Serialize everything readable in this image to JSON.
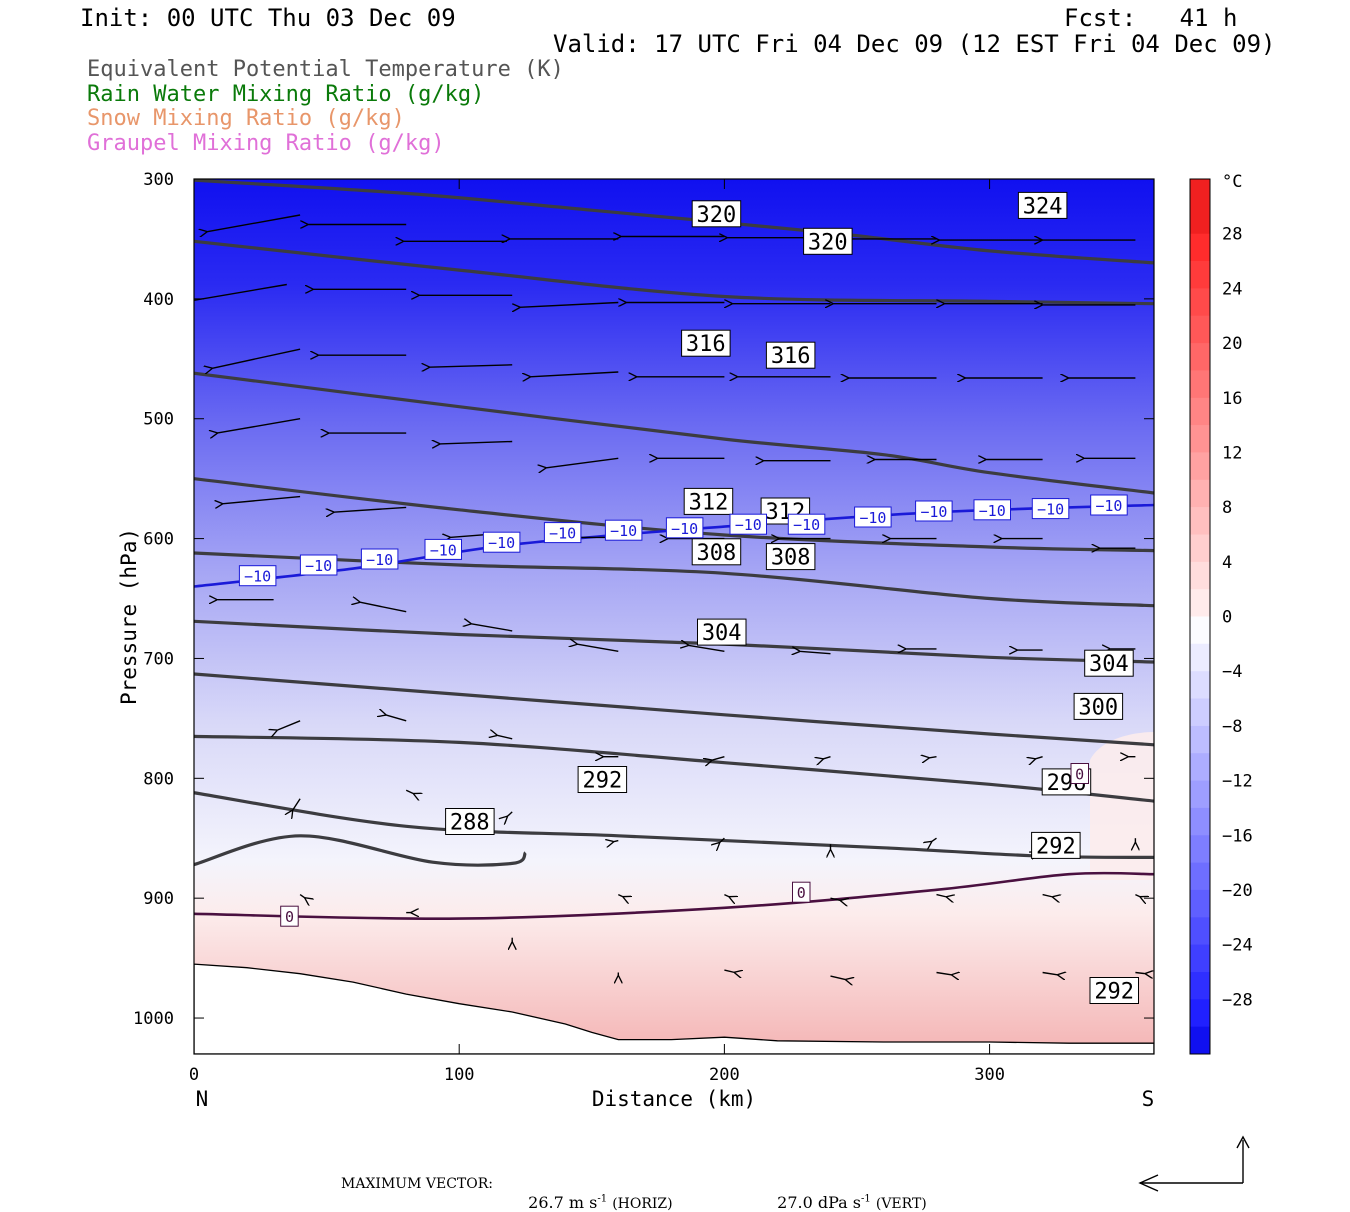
{
  "header": {
    "init": "Init: 00 UTC Thu 03 Dec 09",
    "fcst": "Fcst:   41 h",
    "valid": "Valid: 17 UTC Fri 04 Dec 09 (12 EST Fri 04 Dec 09)"
  },
  "legend": [
    {
      "text": "Equivalent Potential Temperature (K)",
      "color": "#555555"
    },
    {
      "text": "Rain Water Mixing Ratio (g/kg)",
      "color": "#0a7a0a"
    },
    {
      "text": "Snow Mixing Ratio (g/kg)",
      "color": "#e8966a"
    },
    {
      "text": "Graupel Mixing Ratio (g/kg)",
      "color": "#e070d8"
    }
  ],
  "chart_data": {
    "type": "contour cross-section",
    "xlabel": "Distance (km)",
    "ylabel": "Pressure (hPa)",
    "xlim": [
      0,
      362
    ],
    "ylim": [
      300,
      1030
    ],
    "x_ticks": [
      "0",
      "100",
      "200",
      "300"
    ],
    "y_ticks": [
      "300",
      "400",
      "500",
      "600",
      "700",
      "800",
      "900",
      "1000"
    ],
    "x_start_label": "N",
    "x_end_label": "S",
    "colorbar": {
      "unit": "°C",
      "ticks": [
        "28",
        "24",
        "20",
        "16",
        "12",
        "8",
        "4",
        "0",
        "-4",
        "-8",
        "-12",
        "-16",
        "-20",
        "-24",
        "-28"
      ]
    },
    "theta_e_contours": [
      {
        "value": 324,
        "points": [
          [
            0,
            301
          ],
          [
            80,
            312
          ],
          [
            150,
            326
          ],
          [
            240,
            345
          ],
          [
            300,
            360
          ],
          [
            362,
            370
          ]
        ]
      },
      {
        "value": 320,
        "points": [
          [
            0,
            352
          ],
          [
            100,
            376
          ],
          [
            200,
            398
          ],
          [
            300,
            402
          ],
          [
            362,
            404
          ]
        ]
      },
      {
        "value": 316,
        "points": [
          [
            0,
            462
          ],
          [
            100,
            490
          ],
          [
            200,
            517
          ],
          [
            260,
            530
          ],
          [
            300,
            545
          ],
          [
            362,
            562
          ]
        ]
      },
      {
        "value": 312,
        "points": [
          [
            0,
            550
          ],
          [
            100,
            576
          ],
          [
            200,
            597
          ],
          [
            300,
            607
          ],
          [
            362,
            610
          ]
        ]
      },
      {
        "value": 308,
        "points": [
          [
            0,
            612
          ],
          [
            100,
            622
          ],
          [
            200,
            629
          ],
          [
            300,
            650
          ],
          [
            362,
            656
          ]
        ]
      },
      {
        "value": 304,
        "points": [
          [
            0,
            669
          ],
          [
            100,
            680
          ],
          [
            200,
            688
          ],
          [
            300,
            699
          ],
          [
            362,
            703
          ]
        ]
      },
      {
        "value": 300,
        "points": [
          [
            0,
            713
          ],
          [
            100,
            730
          ],
          [
            200,
            747
          ],
          [
            300,
            763
          ],
          [
            362,
            772
          ]
        ]
      },
      {
        "value": 296,
        "points": [
          [
            0,
            765
          ],
          [
            100,
            770
          ],
          [
            200,
            787
          ],
          [
            300,
            805
          ],
          [
            362,
            819
          ]
        ]
      },
      {
        "value": 292,
        "points": [
          [
            0,
            812
          ],
          [
            80,
            840
          ],
          [
            160,
            848
          ],
          [
            260,
            858
          ],
          [
            320,
            865
          ],
          [
            362,
            866
          ]
        ]
      },
      {
        "value": 288,
        "points": [
          [
            0,
            872
          ],
          [
            40,
            848
          ],
          [
            90,
            870
          ],
          [
            120,
            871
          ],
          [
            125,
            862
          ]
        ]
      }
    ],
    "temperature_contours": [
      {
        "value": -10,
        "points": [
          [
            0,
            640
          ],
          [
            60,
            625
          ],
          [
            120,
            605
          ],
          [
            200,
            590
          ],
          [
            280,
            578
          ],
          [
            362,
            572
          ]
        ]
      },
      {
        "value": 0,
        "points": [
          [
            0,
            913
          ],
          [
            100,
            917
          ],
          [
            200,
            908
          ],
          [
            280,
            893
          ],
          [
            330,
            880
          ],
          [
            362,
            880
          ]
        ]
      }
    ],
    "contour_labels": [
      {
        "text": "324",
        "x": 320,
        "p": 322
      },
      {
        "text": "320",
        "x": 197,
        "p": 329
      },
      {
        "text": "320",
        "x": 239,
        "p": 352
      },
      {
        "text": "316",
        "x": 193,
        "p": 437
      },
      {
        "text": "316",
        "x": 225,
        "p": 447
      },
      {
        "text": "312",
        "x": 194,
        "p": 569
      },
      {
        "text": "312",
        "x": 223,
        "p": 577
      },
      {
        "text": "308",
        "x": 197,
        "p": 611
      },
      {
        "text": "308",
        "x": 225,
        "p": 615
      },
      {
        "text": "304",
        "x": 199,
        "p": 678
      },
      {
        "text": "304",
        "x": 345,
        "p": 704
      },
      {
        "text": "300",
        "x": 341,
        "p": 740
      },
      {
        "text": "296",
        "x": 329,
        "p": 803
      },
      {
        "text": "292",
        "x": 154,
        "p": 801
      },
      {
        "text": "292",
        "x": 325,
        "p": 856
      },
      {
        "text": "288",
        "x": 104,
        "p": 836
      },
      {
        "text": "292",
        "x": 347,
        "p": 977
      }
    ],
    "temperature_labels": [
      {
        "text": "-10",
        "x": 24,
        "p": 631
      },
      {
        "text": "-10",
        "x": 47,
        "p": 622
      },
      {
        "text": "-10",
        "x": 70,
        "p": 617
      },
      {
        "text": "-10",
        "x": 94,
        "p": 609
      },
      {
        "text": "-10",
        "x": 116,
        "p": 603
      },
      {
        "text": "-10",
        "x": 139,
        "p": 595
      },
      {
        "text": "-10",
        "x": 162,
        "p": 593
      },
      {
        "text": "-10",
        "x": 185,
        "p": 591
      },
      {
        "text": "-10",
        "x": 209,
        "p": 588
      },
      {
        "text": "-10",
        "x": 231,
        "p": 588
      },
      {
        "text": "-10",
        "x": 256,
        "p": 582
      },
      {
        "text": "-10",
        "x": 279,
        "p": 577
      },
      {
        "text": "-10",
        "x": 301,
        "p": 576
      },
      {
        "text": "-10",
        "x": 323,
        "p": 575
      },
      {
        "text": "-10",
        "x": 345,
        "p": 572
      },
      {
        "text": "0",
        "x": 36,
        "p": 915
      },
      {
        "text": "0",
        "x": 229,
        "p": 895
      },
      {
        "text": "0",
        "x": 334,
        "p": 796
      }
    ],
    "wind_vectors": [
      {
        "x": 40,
        "p": 330,
        "dx": -36,
        "dy": 14
      },
      {
        "x": 80,
        "p": 338,
        "dx": -38,
        "dy": 0
      },
      {
        "x": 118,
        "p": 352,
        "dx": -40,
        "dy": 0
      },
      {
        "x": 160,
        "p": 350,
        "dx": -42,
        "dy": 0
      },
      {
        "x": 200,
        "p": 348,
        "dx": -40,
        "dy": 0
      },
      {
        "x": 240,
        "p": 349,
        "dx": -40,
        "dy": 0
      },
      {
        "x": 280,
        "p": 350,
        "dx": -40,
        "dy": 0
      },
      {
        "x": 320,
        "p": 351,
        "dx": -40,
        "dy": 0
      },
      {
        "x": 355,
        "p": 351,
        "dx": -36,
        "dy": 0
      },
      {
        "x": 35,
        "p": 388,
        "dx": -38,
        "dy": 14
      },
      {
        "x": 80,
        "p": 392,
        "dx": -36,
        "dy": 0
      },
      {
        "x": 120,
        "p": 397,
        "dx": -36,
        "dy": 0
      },
      {
        "x": 160,
        "p": 403,
        "dx": -38,
        "dy": 4
      },
      {
        "x": 200,
        "p": 403,
        "dx": -38,
        "dy": 0
      },
      {
        "x": 240,
        "p": 404,
        "dx": -38,
        "dy": 0
      },
      {
        "x": 280,
        "p": 404,
        "dx": -40,
        "dy": 0
      },
      {
        "x": 320,
        "p": 404,
        "dx": -38,
        "dy": 0
      },
      {
        "x": 355,
        "p": 405,
        "dx": -36,
        "dy": 0
      },
      {
        "x": 40,
        "p": 442,
        "dx": -34,
        "dy": 16
      },
      {
        "x": 80,
        "p": 447,
        "dx": -34,
        "dy": 0
      },
      {
        "x": 120,
        "p": 455,
        "dx": -32,
        "dy": 2
      },
      {
        "x": 160,
        "p": 461,
        "dx": -34,
        "dy": 4
      },
      {
        "x": 200,
        "p": 465,
        "dx": -34,
        "dy": 0
      },
      {
        "x": 240,
        "p": 465,
        "dx": -36,
        "dy": 0
      },
      {
        "x": 280,
        "p": 466,
        "dx": -34,
        "dy": 0
      },
      {
        "x": 320,
        "p": 466,
        "dx": -30,
        "dy": 0
      },
      {
        "x": 355,
        "p": 466,
        "dx": -26,
        "dy": 0
      },
      {
        "x": 40,
        "p": 500,
        "dx": -32,
        "dy": 12
      },
      {
        "x": 80,
        "p": 512,
        "dx": -30,
        "dy": 0
      },
      {
        "x": 120,
        "p": 519,
        "dx": -28,
        "dy": 2
      },
      {
        "x": 160,
        "p": 533,
        "dx": -28,
        "dy": 8
      },
      {
        "x": 200,
        "p": 533,
        "dx": -26,
        "dy": 0
      },
      {
        "x": 240,
        "p": 535,
        "dx": -26,
        "dy": 0
      },
      {
        "x": 280,
        "p": 534,
        "dx": -24,
        "dy": 0
      },
      {
        "x": 320,
        "p": 534,
        "dx": -22,
        "dy": 0
      },
      {
        "x": 355,
        "p": 533,
        "dx": -20,
        "dy": 0
      },
      {
        "x": 40,
        "p": 565,
        "dx": -30,
        "dy": 6
      },
      {
        "x": 80,
        "p": 574,
        "dx": -28,
        "dy": 4
      },
      {
        "x": 120,
        "p": 595,
        "dx": -24,
        "dy": 4
      },
      {
        "x": 160,
        "p": 599,
        "dx": -22,
        "dy": 0
      },
      {
        "x": 200,
        "p": 600,
        "dx": -22,
        "dy": 0
      },
      {
        "x": 240,
        "p": 600,
        "dx": -20,
        "dy": 0
      },
      {
        "x": 280,
        "p": 600,
        "dx": -18,
        "dy": 0
      },
      {
        "x": 320,
        "p": 600,
        "dx": -16,
        "dy": 0
      },
      {
        "x": 355,
        "p": 608,
        "dx": -14,
        "dy": 0
      },
      {
        "x": 30,
        "p": 651,
        "dx": -22,
        "dy": 0
      },
      {
        "x": 80,
        "p": 661,
        "dx": -18,
        "dy": -8
      },
      {
        "x": 120,
        "p": 677,
        "dx": -16,
        "dy": -6
      },
      {
        "x": 160,
        "p": 694,
        "dx": -16,
        "dy": -6
      },
      {
        "x": 200,
        "p": 694,
        "dx": -14,
        "dy": -5
      },
      {
        "x": 240,
        "p": 696,
        "dx": -12,
        "dy": -2
      },
      {
        "x": 280,
        "p": 692,
        "dx": -12,
        "dy": 0
      },
      {
        "x": 320,
        "p": 693,
        "dx": -10,
        "dy": 0
      },
      {
        "x": 355,
        "p": 692,
        "dx": -10,
        "dy": 0
      },
      {
        "x": 40,
        "p": 752,
        "dx": -9,
        "dy": 8
      },
      {
        "x": 80,
        "p": 752,
        "dx": -8,
        "dy": -5
      },
      {
        "x": 120,
        "p": 767,
        "dx": -6,
        "dy": -3
      },
      {
        "x": 160,
        "p": 782,
        "dx": -6,
        "dy": 0
      },
      {
        "x": 200,
        "p": 782,
        "dx": -5,
        "dy": 3
      },
      {
        "x": 240,
        "p": 782,
        "dx": -3,
        "dy": 2
      },
      {
        "x": 280,
        "p": 782,
        "dx": -3,
        "dy": 1
      },
      {
        "x": 320,
        "p": 782,
        "dx": -3,
        "dy": 2
      },
      {
        "x": 355,
        "p": 782,
        "dx": -3,
        "dy": 0
      },
      {
        "x": 40,
        "p": 817,
        "dx": -3,
        "dy": 10
      },
      {
        "x": 80,
        "p": 810,
        "dx": 3,
        "dy": 3
      },
      {
        "x": 120,
        "p": 828,
        "dx": -2,
        "dy": 4
      },
      {
        "x": 160,
        "p": 852,
        "dx": -2,
        "dy": 1
      },
      {
        "x": 200,
        "p": 850,
        "dx": -2,
        "dy": 4
      },
      {
        "x": 240,
        "p": 855,
        "dx": 0,
        "dy": 5
      },
      {
        "x": 280,
        "p": 850,
        "dx": -2,
        "dy": 3
      },
      {
        "x": 320,
        "p": 860,
        "dx": -2,
        "dy": 2
      },
      {
        "x": 355,
        "p": 850,
        "dx": 0,
        "dy": 4
      },
      {
        "x": 40,
        "p": 897,
        "dx": 2,
        "dy": 3
      },
      {
        "x": 80,
        "p": 912,
        "dx": 2,
        "dy": 0
      },
      {
        "x": 120,
        "p": 933,
        "dx": 0,
        "dy": 4
      },
      {
        "x": 160,
        "p": 897,
        "dx": 2,
        "dy": 2
      },
      {
        "x": 200,
        "p": 897,
        "dx": 2,
        "dy": 2
      },
      {
        "x": 240,
        "p": 900,
        "dx": 4,
        "dy": 2
      },
      {
        "x": 280,
        "p": 897,
        "dx": 4,
        "dy": 2
      },
      {
        "x": 320,
        "p": 897,
        "dx": 4,
        "dy": 2
      },
      {
        "x": 355,
        "p": 897,
        "dx": 2,
        "dy": 2
      },
      {
        "x": 160,
        "p": 962,
        "dx": 0,
        "dy": 3
      },
      {
        "x": 200,
        "p": 960,
        "dx": 4,
        "dy": 2
      },
      {
        "x": 240,
        "p": 965,
        "dx": 6,
        "dy": 3
      },
      {
        "x": 280,
        "p": 962,
        "dx": 6,
        "dy": 2
      },
      {
        "x": 320,
        "p": 962,
        "dx": 6,
        "dy": 2
      },
      {
        "x": 355,
        "p": 962,
        "dx": 4,
        "dy": 1
      }
    ],
    "terrain": [
      [
        0,
        955
      ],
      [
        20,
        958
      ],
      [
        40,
        963
      ],
      [
        60,
        970
      ],
      [
        80,
        980
      ],
      [
        100,
        988
      ],
      [
        120,
        995
      ],
      [
        140,
        1005
      ],
      [
        150,
        1012
      ],
      [
        160,
        1018
      ],
      [
        180,
        1018
      ],
      [
        200,
        1016
      ],
      [
        220,
        1019
      ],
      [
        260,
        1020
      ],
      [
        300,
        1020
      ],
      [
        330,
        1021
      ],
      [
        362,
        1021
      ]
    ]
  },
  "footer": {
    "vector_prefix": "MAXIMUM VECTOR:",
    "horiz_value": "26.7 m s",
    "horiz_exp": "-1",
    "horiz_unit": "(HORIZ)",
    "vert_value": "27.0 dPa s",
    "vert_exp": "-1",
    "vert_unit": "(VERT)"
  }
}
